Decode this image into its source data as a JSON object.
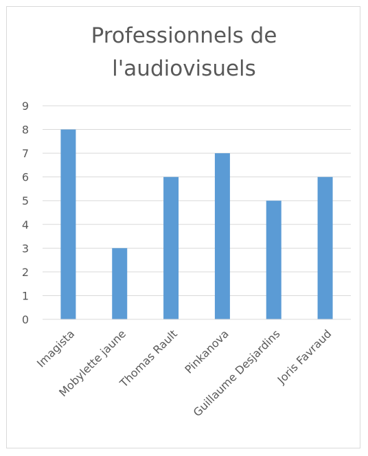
{
  "chart_data": {
    "type": "bar",
    "title_lines": [
      "Professionnels de",
      "l'audiovisuels"
    ],
    "categories": [
      "Imagista",
      "Mobylette jaune",
      "Thomas Rault",
      "Pinkanova",
      "Guillaume Desjardins",
      "Joris Favraud"
    ],
    "values": [
      8,
      3,
      6,
      7,
      5,
      6
    ],
    "y_ticks": [
      "0",
      "1",
      "2",
      "3",
      "4",
      "5",
      "6",
      "7",
      "8",
      "9"
    ],
    "ylim": [
      0,
      9
    ],
    "grid": true,
    "legend": "none",
    "bar_color": "#5b9bd5",
    "grid_color": "#d9d9d9",
    "text_color": "#595959"
  }
}
